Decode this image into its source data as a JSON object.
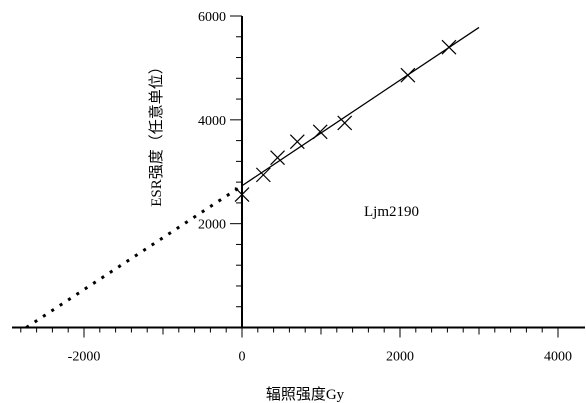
{
  "chart_data": {
    "type": "scatter",
    "title": "",
    "xlabel": "辐照强度Gy",
    "ylabel": "ESR强度（任意单位）",
    "annotation": "Ljm2190",
    "xlim": [
      -2900,
      4000
    ],
    "ylim": [
      -100,
      6000
    ],
    "x_ticks": [
      -2000,
      0,
      2000,
      4000
    ],
    "x_tick_labels": [
      "-2000",
      "0",
      "2000",
      "4000"
    ],
    "y_ticks": [
      2000,
      4000,
      6000
    ],
    "y_tick_labels": [
      "2000",
      "4000",
      "6000"
    ],
    "grid": false,
    "legend": "none",
    "series": [
      {
        "kind": "points",
        "marker": "x",
        "x": [
          0,
          270,
          450,
          700,
          990,
          1300,
          2100,
          2620
        ],
        "y": [
          2560,
          2940,
          3270,
          3580,
          3770,
          3940,
          4860,
          5400
        ]
      },
      {
        "kind": "fit-line",
        "style": "solid",
        "x": [
          0,
          3000
        ],
        "y": [
          2730,
          5780
        ]
      },
      {
        "kind": "extrapolation",
        "style": "dotted",
        "x": [
          -2730,
          0
        ],
        "y": [
          0,
          2730
        ]
      }
    ],
    "colors": {
      "axes": "#000000",
      "marks": "#000000",
      "background": "#ffffff"
    }
  }
}
